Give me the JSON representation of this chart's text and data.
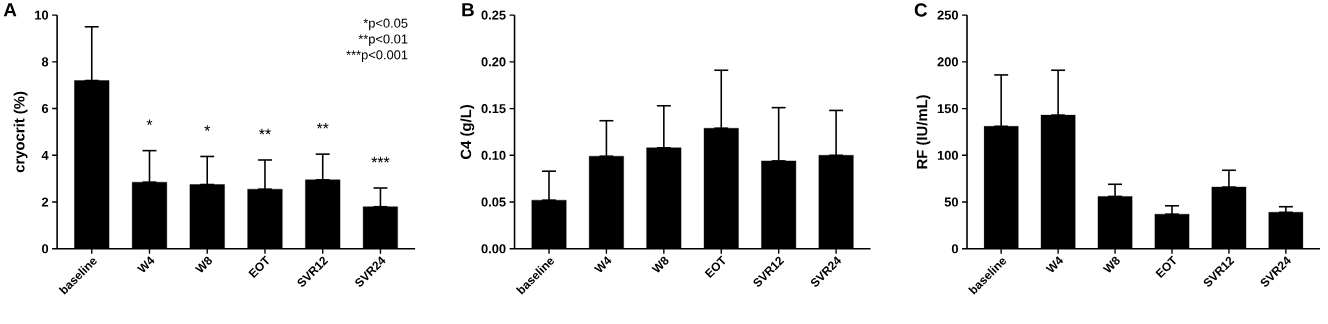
{
  "chart_data": [
    {
      "type": "bar",
      "title": "A",
      "ylabel": "cryocrit (%)",
      "categories": [
        "baseline",
        "W4",
        "W8",
        "EOT",
        "SVR12",
        "SVR24"
      ],
      "values": [
        7.2,
        2.85,
        2.75,
        2.55,
        2.95,
        1.8
      ],
      "errors": [
        [
          7.2,
          9.5
        ],
        [
          2.85,
          4.2
        ],
        [
          2.75,
          3.95
        ],
        [
          2.55,
          3.8
        ],
        [
          2.95,
          4.05
        ],
        [
          1.8,
          2.6
        ]
      ],
      "color": "#000000",
      "ylim": [
        0,
        10
      ],
      "yticks": [
        0,
        2,
        4,
        6,
        8,
        10
      ],
      "annotations": [
        "*",
        "*",
        "**",
        "**",
        "***",
        "*p<0.05",
        "**p<0.01",
        "***p<0.001"
      ]
    },
    {
      "type": "bar",
      "title": "B",
      "ylabel": "C4 (g/L)",
      "categories": [
        "baseline",
        "W4",
        "W8",
        "EOT",
        "SVR12",
        "SVR24"
      ],
      "values": [
        0.052,
        0.099,
        0.108,
        0.129,
        0.094,
        0.1
      ],
      "errors": [
        [
          0.052,
          0.083
        ],
        [
          0.099,
          0.137
        ],
        [
          0.108,
          0.153
        ],
        [
          0.129,
          0.191
        ],
        [
          0.094,
          0.151
        ],
        [
          0.1,
          0.148
        ]
      ],
      "color": "#000000",
      "ylim": [
        0,
        0.25
      ],
      "yticks": [
        {
          "value": 0,
          "label": "0.00"
        },
        {
          "value": 0.05,
          "label": "0.05"
        },
        {
          "value": 0.1,
          "label": "0.10"
        },
        {
          "value": 0.15,
          "label": "0.15"
        },
        {
          "value": 0.2,
          "label": "0.20"
        },
        {
          "value": 0.25,
          "label": "0.25"
        }
      ]
    },
    {
      "type": "bar",
      "title": "C",
      "ylabel": "RF (IU/mL)",
      "categories": [
        "baseline",
        "W4",
        "W8",
        "EOT",
        "SVR12",
        "SVR24"
      ],
      "values": [
        131,
        143,
        56,
        37,
        66,
        39
      ],
      "errors": [
        [
          131,
          186
        ],
        [
          143,
          191
        ],
        [
          56,
          69
        ],
        [
          37,
          46
        ],
        [
          66,
          84
        ],
        [
          39,
          45
        ]
      ],
      "color": "#000000",
      "ylim": [
        0,
        250
      ],
      "yticks": [
        0,
        50,
        100,
        150,
        200,
        250
      ]
    }
  ]
}
